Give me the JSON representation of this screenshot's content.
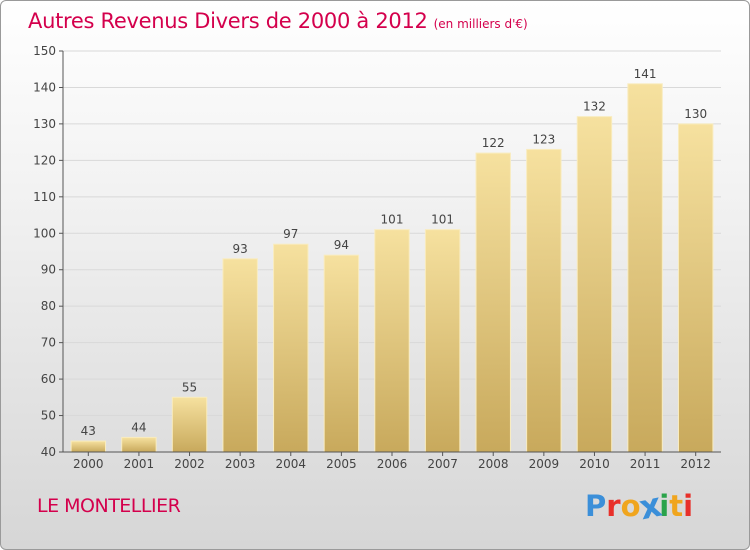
{
  "header": {
    "title": "Autres Revenus Divers de 2000 à 2012",
    "subtitle": "(en milliers d'€)"
  },
  "footer": {
    "location": "LE MONTELLIER",
    "brand": "Proxiti",
    "brand_letters": [
      {
        "char": "P",
        "color": "#3b8fd9"
      },
      {
        "char": "r",
        "color": "#e8302a"
      },
      {
        "char": "o",
        "color": "#f0a51e"
      },
      {
        "char": "x",
        "color": "#3b8fd9"
      },
      {
        "char": "i",
        "color": "#2aa34a"
      },
      {
        "char": "t",
        "color": "#f0a51e"
      },
      {
        "char": "i",
        "color": "#e8302a"
      }
    ]
  },
  "colors": {
    "accent": "#d4004c",
    "bar_top": "#f6e19f",
    "bar_bottom": "#c8a95c",
    "grid": "#d9d9d9",
    "axis_text": "#444444"
  },
  "chart_data": {
    "type": "bar",
    "categories": [
      "2000",
      "2001",
      "2002",
      "2003",
      "2004",
      "2005",
      "2006",
      "2007",
      "2008",
      "2009",
      "2010",
      "2011",
      "2012"
    ],
    "values": [
      43,
      44,
      55,
      93,
      97,
      94,
      101,
      101,
      122,
      123,
      132,
      141,
      130
    ],
    "title": "Autres Revenus Divers de 2000 à 2012",
    "subtitle": "(en milliers d'€)",
    "xlabel": "",
    "ylabel": "",
    "ylim": [
      40,
      150
    ],
    "yticks": [
      40,
      50,
      60,
      70,
      80,
      90,
      100,
      110,
      120,
      130,
      140,
      150
    ],
    "grid": true,
    "data_labels": true
  }
}
